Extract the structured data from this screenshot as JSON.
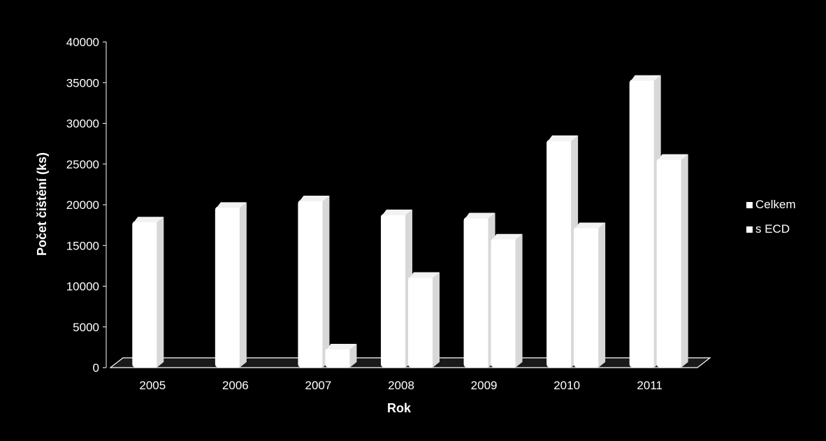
{
  "chart_data": {
    "type": "bar",
    "title": "",
    "xlabel": "Rok",
    "ylabel": "Počet čištění (ks)",
    "categories": [
      "2005",
      "2006",
      "2007",
      "2008",
      "2009",
      "2010",
      "2011"
    ],
    "series": [
      {
        "name": "Celkem",
        "values": [
          18000,
          19800,
          20600,
          18900,
          18500,
          28000,
          35400
        ]
      },
      {
        "name": "s ECD",
        "values": [
          0,
          0,
          2400,
          11200,
          15900,
          17300,
          25700
        ]
      }
    ],
    "yticks": [
      "0",
      "5000",
      "10000",
      "15000",
      "20000",
      "25000",
      "30000",
      "35000",
      "40000"
    ],
    "ylim": [
      0,
      40000
    ],
    "grid": false,
    "legend_position": "right",
    "bar_color": "#ffffff",
    "background_color": "#000000",
    "floor_color": "#1a1a1a"
  }
}
